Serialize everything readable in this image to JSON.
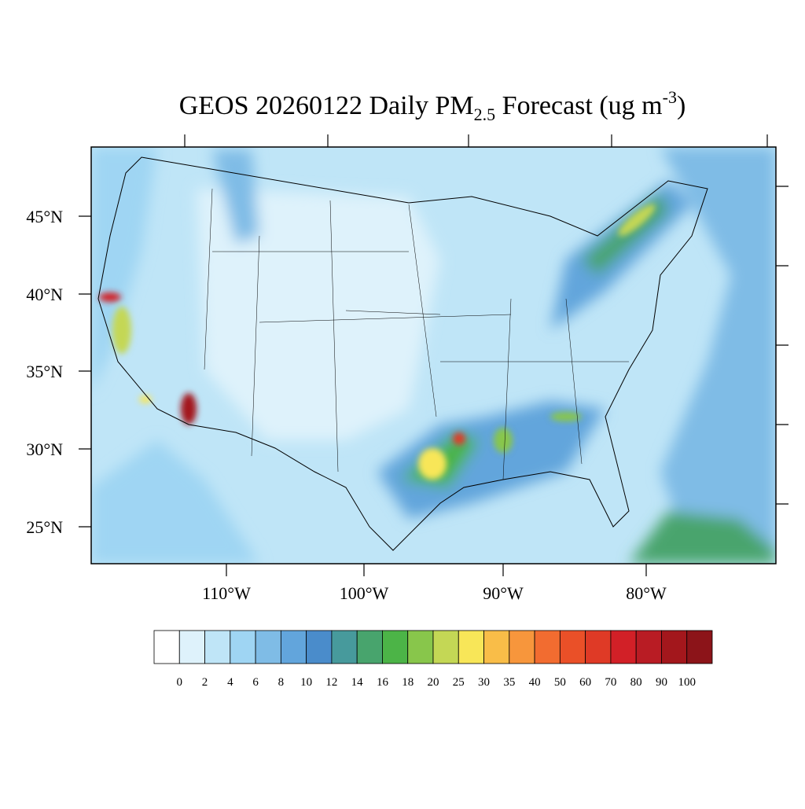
{
  "map": {
    "title": {
      "main": "GEOS 20260122 Daily PM",
      "sub": "2.5",
      "rest": " Forecast (ug m",
      "sup": "-3",
      "end": ")"
    },
    "lat_labels": [
      "45°N",
      "40°N",
      "35°N",
      "30°N",
      "25°N"
    ],
    "lon_labels": [
      "110°W",
      "100°W",
      "90°W",
      "80°W"
    ],
    "colorbar": {
      "levels": [
        0,
        2,
        4,
        6,
        8,
        10,
        12,
        14,
        16,
        18,
        20,
        25,
        30,
        35,
        40,
        50,
        60,
        70,
        80,
        90,
        100
      ],
      "colors": [
        "#ffffff",
        "#def2fb",
        "#bfe5f7",
        "#9fd5f3",
        "#7fbce6",
        "#62a5dc",
        "#4a8ccb",
        "#479a9c",
        "#48a46d",
        "#4cb447",
        "#88c64b",
        "#c4d755",
        "#f8e658",
        "#f9bd48",
        "#f7963c",
        "#f26c30",
        "#ea5028",
        "#df3a26",
        "#d22027",
        "#b91c24",
        "#a3171c",
        "#8c1419"
      ]
    }
  }
}
